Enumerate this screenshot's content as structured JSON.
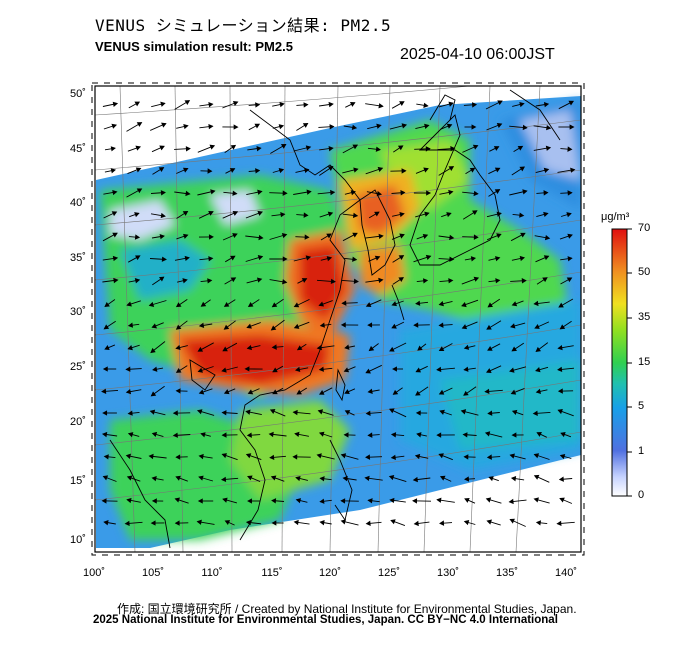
{
  "header": {
    "title_jp": "VENUS シミュレーション結果: PM2.5",
    "title_en": "VENUS simulation result: PM2.5",
    "timestamp": "2025-04-10 06:00JST"
  },
  "map": {
    "lon_ticks": [
      "100˚",
      "105˚",
      "110˚",
      "115˚",
      "120˚",
      "125˚",
      "130˚",
      "135˚",
      "140˚"
    ],
    "lat_ticks": [
      "50˚",
      "45˚",
      "40˚",
      "35˚",
      "30˚",
      "25˚",
      "20˚",
      "15˚",
      "10˚"
    ],
    "lon_range": [
      100,
      142
    ],
    "lat_range": [
      9,
      51
    ]
  },
  "colorbar": {
    "unit": "μg/m³",
    "labels": [
      "70",
      "50",
      "35",
      "15",
      "5",
      "1",
      "0"
    ],
    "colors": [
      "#d82010",
      "#f07818",
      "#f0c820",
      "#40d040",
      "#20b8c8",
      "#3878e0",
      "#e0e8ff"
    ]
  },
  "footer": {
    "credit_line1": "作成: 国立環境研究所 / Created by National Institute for Environmental Studies, Japan.",
    "credit_line2": "2025 National Institute for Environmental Studies, Japan. CC BY−NC 4.0 International"
  }
}
